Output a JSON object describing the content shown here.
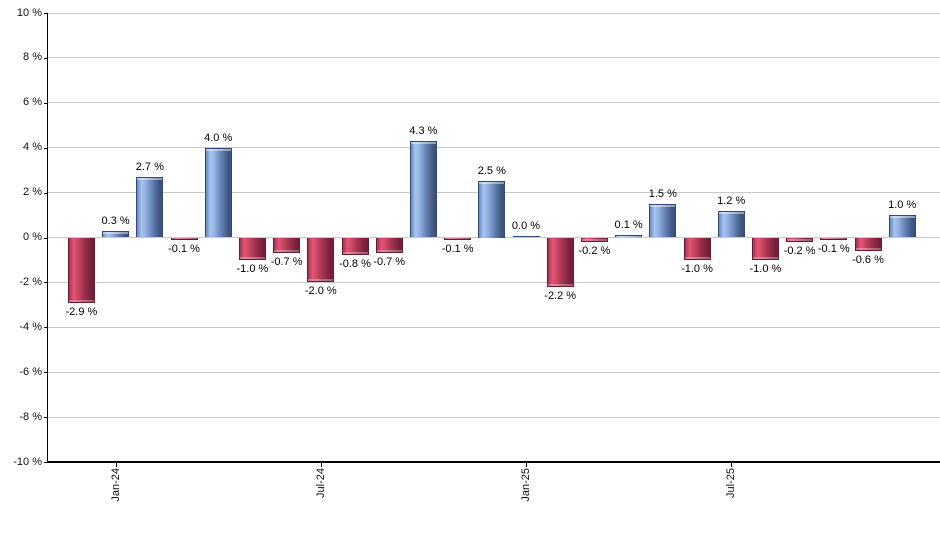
{
  "chart_data": {
    "type": "bar",
    "title": "",
    "xlabel": "",
    "ylabel": "",
    "unit": "%",
    "ylim": [
      -10,
      10
    ],
    "grid": true,
    "legend": "none",
    "values": [
      -2.9,
      0.3,
      2.7,
      -0.1,
      4.0,
      -1.0,
      -0.7,
      -2.0,
      -0.8,
      -0.7,
      4.3,
      -0.1,
      2.5,
      0.0,
      -2.2,
      -0.2,
      0.1,
      1.5,
      -1.0,
      1.2,
      -1.0,
      -0.2,
      -0.1,
      -0.6,
      1.0
    ],
    "bar_labels": [
      "-2.9 %",
      "0.3 %",
      "2.7 %",
      "-0.1 %",
      "4.0 %",
      "-1.0 %",
      "-0.7 %",
      "-2.0 %",
      "-0.8 %",
      "-0.7 %",
      "4.3 %",
      "-0.1 %",
      "2.5 %",
      "0.0 %",
      "-2.2 %",
      "-0.2 %",
      "0.1 %",
      "1.5 %",
      "-1.0 %",
      "1.2 %",
      "-1.0 %",
      "-0.2 %",
      "-0.1 %",
      "-0.6 %",
      "1.0 %"
    ],
    "y_ticks": [
      "10 %",
      "8 %",
      "6 %",
      "4 %",
      "2 %",
      "0 %",
      "-2 %",
      "-4 %",
      "-6 %",
      "-8 %",
      "-10 %"
    ],
    "x_ticks": [
      {
        "label": "Jan-24",
        "index": 1
      },
      {
        "label": "Jul-24",
        "index": 7
      },
      {
        "label": "Jan-25",
        "index": 13
      },
      {
        "label": "Jul-25",
        "index": 19
      }
    ],
    "colors": {
      "positive": "#7d9fd3",
      "negative": "#c94d67",
      "gridline": "#c9c9c9",
      "axis": "#000000",
      "label_text": "#000000"
    }
  }
}
